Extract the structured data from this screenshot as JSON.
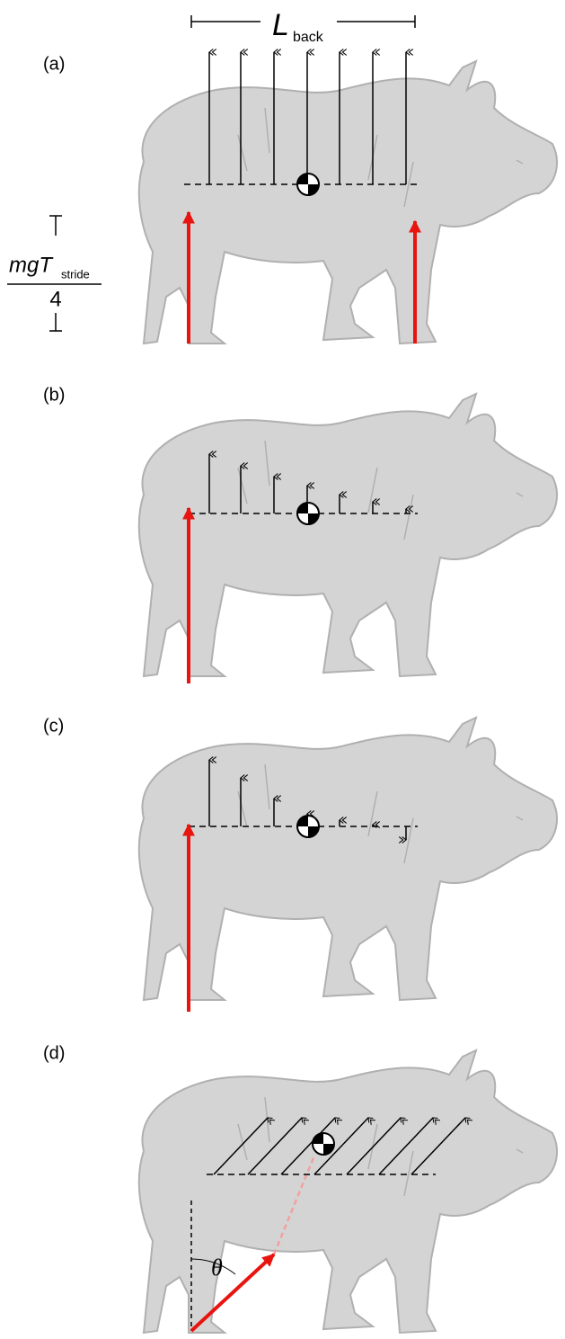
{
  "length_label": {
    "symbol": "L",
    "subscript": "back"
  },
  "impulse_label": {
    "numerator": "mgT",
    "subscript": "stride",
    "denominator": "4"
  },
  "panels": [
    {
      "label": "(a)"
    },
    {
      "label": "(b)"
    },
    {
      "label": "(c)"
    },
    {
      "label": "(d)"
    }
  ],
  "angle_label": "θ"
}
